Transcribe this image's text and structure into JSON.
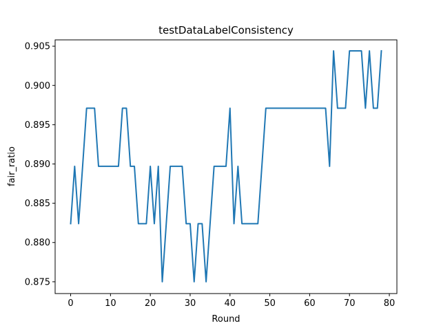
{
  "chart_data": {
    "type": "line",
    "title": "testDataLabelConsistency",
    "xlabel": "Round",
    "ylabel": "fair_ratio",
    "xlim": [
      -3.9,
      81.9
    ],
    "ylim": [
      0.8735,
      0.9058
    ],
    "xticks": [
      0,
      10,
      20,
      30,
      40,
      50,
      60,
      70,
      80
    ],
    "xtick_labels": [
      "0",
      "10",
      "20",
      "30",
      "40",
      "50",
      "60",
      "70",
      "80"
    ],
    "yticks": [
      0.875,
      0.88,
      0.885,
      0.89,
      0.895,
      0.9,
      0.905
    ],
    "ytick_labels": [
      "0.875",
      "0.880",
      "0.885",
      "0.890",
      "0.895",
      "0.900",
      "0.905"
    ],
    "grid": false,
    "series": [
      {
        "color": "#1f77b4",
        "x": [
          0,
          1,
          2,
          3,
          4,
          5,
          6,
          7,
          8,
          9,
          10,
          11,
          12,
          13,
          14,
          15,
          16,
          17,
          18,
          19,
          20,
          21,
          22,
          23,
          24,
          25,
          26,
          27,
          28,
          29,
          30,
          31,
          32,
          33,
          34,
          35,
          36,
          37,
          38,
          39,
          40,
          41,
          42,
          43,
          44,
          45,
          46,
          47,
          48,
          49,
          50,
          51,
          52,
          53,
          54,
          55,
          56,
          57,
          58,
          59,
          60,
          61,
          62,
          63,
          64,
          65,
          66,
          67,
          68,
          69,
          70,
          71,
          72,
          73,
          74,
          75,
          76,
          77,
          78
        ],
        "y": [
          0.8824,
          0.8897,
          0.8824,
          0.8897,
          0.8971,
          0.8971,
          0.8971,
          0.8897,
          0.8897,
          0.8897,
          0.8897,
          0.8897,
          0.8897,
          0.8971,
          0.8971,
          0.8897,
          0.8897,
          0.8824,
          0.8824,
          0.8824,
          0.8897,
          0.8824,
          0.8897,
          0.875,
          0.8824,
          0.8897,
          0.8897,
          0.8897,
          0.8897,
          0.8824,
          0.8824,
          0.875,
          0.8824,
          0.8824,
          0.875,
          0.8824,
          0.8897,
          0.8897,
          0.8897,
          0.8897,
          0.8971,
          0.8824,
          0.8897,
          0.8824,
          0.8824,
          0.8824,
          0.8824,
          0.8824,
          0.8897,
          0.8971,
          0.8971,
          0.8971,
          0.8971,
          0.8971,
          0.8971,
          0.8971,
          0.8971,
          0.8971,
          0.8971,
          0.8971,
          0.8971,
          0.8971,
          0.8971,
          0.8971,
          0.8971,
          0.8897,
          0.9044,
          0.8971,
          0.8971,
          0.8971,
          0.9044,
          0.9044,
          0.9044,
          0.9044,
          0.8971,
          0.9044,
          0.8971,
          0.8971,
          0.9044
        ]
      }
    ]
  }
}
